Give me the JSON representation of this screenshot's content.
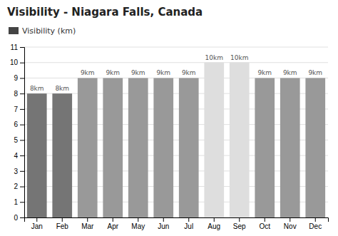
{
  "chart_data": {
    "type": "bar",
    "title": "Visibility - Niagara Falls, Canada",
    "categories": [
      "Jan",
      "Feb",
      "Mar",
      "Apr",
      "May",
      "Jun",
      "Jul",
      "Aug",
      "Sep",
      "Oct",
      "Nov",
      "Dec"
    ],
    "series": [
      {
        "name": "Visibility (km)",
        "color": "#444444",
        "values": [
          8,
          8,
          9,
          9,
          9,
          9,
          9,
          10,
          10,
          9,
          9,
          9
        ],
        "value_labels": [
          "8km",
          "8km",
          "9km",
          "9km",
          "9km",
          "9km",
          "9km",
          "10km",
          "10km",
          "9km",
          "9km",
          "9km"
        ],
        "colors": [
          "#757575",
          "#757575",
          "#999999",
          "#999999",
          "#999999",
          "#999999",
          "#999999",
          "#dedede",
          "#dedede",
          "#999999",
          "#999999",
          "#999999"
        ]
      }
    ],
    "ylim": [
      0,
      11
    ],
    "yticks": [
      0,
      1,
      2,
      3,
      4,
      5,
      6,
      7,
      8,
      9,
      10,
      11
    ],
    "grid": true,
    "data_labels": true,
    "legend": "top"
  }
}
